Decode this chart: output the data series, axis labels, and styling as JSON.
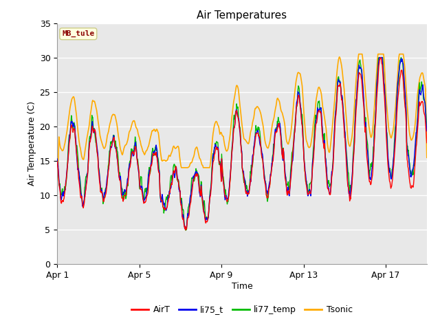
{
  "title": "Air Temperatures",
  "xlabel": "Time",
  "ylabel": "Air Temperature (C)",
  "ylim": [
    0,
    35
  ],
  "yticks": [
    0,
    5,
    10,
    15,
    20,
    25,
    30,
    35
  ],
  "xtick_labels": [
    "Apr 1",
    "Apr 5",
    "Apr 9",
    "Apr 13",
    "Apr 17"
  ],
  "xtick_positions": [
    0,
    4,
    8,
    12,
    16
  ],
  "n_days": 18,
  "colors": {
    "AirT": "#ff0000",
    "li75_t": "#0000ee",
    "li77_temp": "#00bb00",
    "Tsonic": "#ffaa00"
  },
  "annotation_text": "MB_tule",
  "annotation_color": "#8b0000",
  "annotation_bg": "#ffffe0",
  "annotation_edge": "#cccc88",
  "plot_bg": "#e8e8e8",
  "grid_color": "#ffffff",
  "linewidth": 1.0,
  "legend_entries": [
    "AirT",
    "li75_t",
    "li77_temp",
    "Tsonic"
  ]
}
